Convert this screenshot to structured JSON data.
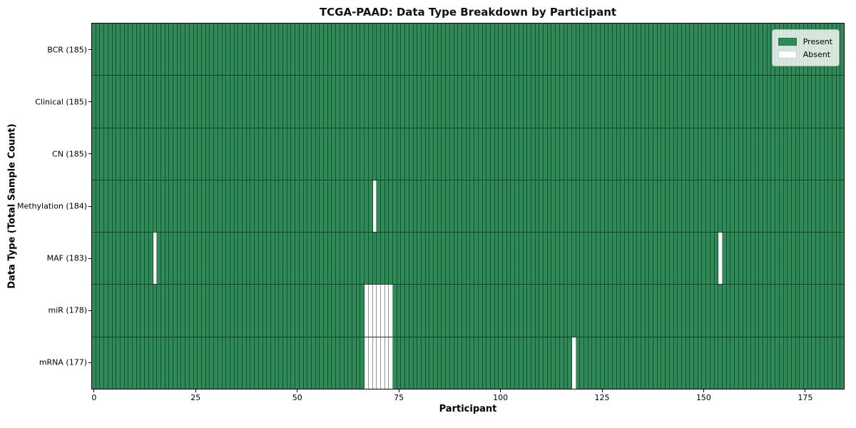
{
  "figure": {
    "background": "#ffffff"
  },
  "chart_data": {
    "type": "heatmap",
    "title": "TCGA-PAAD: Data Type Breakdown by Participant",
    "xlabel": "Participant",
    "ylabel": "Data Type (Total Sample Count)",
    "n_participants": 185,
    "x_ticks": [
      0,
      25,
      50,
      75,
      100,
      125,
      150,
      175
    ],
    "x_range": [
      -0.5,
      184.5
    ],
    "grid": "cell-edges",
    "legend_position": "upper right",
    "rows": [
      {
        "label": "BCR (185)",
        "data_type": "BCR",
        "total_samples": 185,
        "absent_participants": []
      },
      {
        "label": "Clinical (185)",
        "data_type": "Clinical",
        "total_samples": 185,
        "absent_participants": []
      },
      {
        "label": "CN (185)",
        "data_type": "CN",
        "total_samples": 185,
        "absent_participants": []
      },
      {
        "label": "Methylation (184)",
        "data_type": "Methylation",
        "total_samples": 184,
        "absent_participants": [
          69
        ]
      },
      {
        "label": "MAF (183)",
        "data_type": "MAF",
        "total_samples": 183,
        "absent_participants": [
          15,
          154
        ]
      },
      {
        "label": "miR (178)",
        "data_type": "miR",
        "total_samples": 178,
        "absent_participants": [
          67,
          68,
          69,
          70,
          71,
          72,
          73
        ]
      },
      {
        "label": "mRNA (177)",
        "data_type": "mRNA",
        "total_samples": 177,
        "absent_participants": [
          67,
          68,
          69,
          70,
          71,
          72,
          73,
          118
        ]
      }
    ],
    "legend": [
      {
        "label": "Present",
        "color": "#2e8b57"
      },
      {
        "label": "Absent",
        "color": "#ffffff"
      }
    ],
    "colors": {
      "present": "#2e8b57",
      "absent": "#ffffff",
      "cell_edge": "rgba(0,0,0,0.42)",
      "row_separator": "rgba(0,0,0,0.55)",
      "spine": "#000000"
    }
  }
}
